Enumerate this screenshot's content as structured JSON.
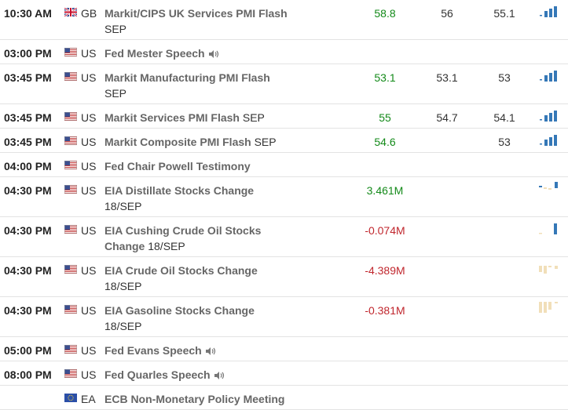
{
  "colors": {
    "positive": "#138a19",
    "negative": "#c0262d",
    "bar_active": "#3578b7",
    "bar_faded": "#f1dfb9"
  },
  "rows": [
    {
      "time": "10:30 AM",
      "flag": "gb-flag-icon",
      "country": "GB",
      "event": "Markit/CIPS UK Services PMI Flash",
      "suffix": "SEP",
      "suffix_wrap": true,
      "actual": "58.8",
      "actual_tone": "positive",
      "forecast": "56",
      "previous": "55.1",
      "bars": "rising",
      "sound": false
    },
    {
      "time": "03:00 PM",
      "flag": "us-flag-icon",
      "country": "US",
      "event": "Fed Mester Speech",
      "suffix": "",
      "suffix_wrap": false,
      "actual": "",
      "actual_tone": "",
      "forecast": "",
      "previous": "",
      "bars": "none",
      "sound": true
    },
    {
      "time": "03:45 PM",
      "flag": "us-flag-icon",
      "country": "US",
      "event": "Markit Manufacturing PMI Flash",
      "suffix": "SEP",
      "suffix_wrap": true,
      "actual": "53.1",
      "actual_tone": "positive",
      "forecast": "53.1",
      "previous": "53",
      "bars": "rising",
      "sound": false
    },
    {
      "time": "03:45 PM",
      "flag": "us-flag-icon",
      "country": "US",
      "event": "Markit Services PMI Flash",
      "suffix": "SEP",
      "suffix_wrap": false,
      "actual": "55",
      "actual_tone": "positive",
      "forecast": "54.7",
      "previous": "54.1",
      "bars": "rising",
      "sound": false
    },
    {
      "time": "03:45 PM",
      "flag": "us-flag-icon",
      "country": "US",
      "event": "Markit Composite PMI Flash",
      "suffix": "SEP",
      "suffix_wrap": false,
      "actual": "54.6",
      "actual_tone": "positive",
      "forecast": "",
      "previous": "53",
      "bars": "rising",
      "sound": false
    },
    {
      "time": "04:00 PM",
      "flag": "us-flag-icon",
      "country": "US",
      "event": "Fed Chair Powell Testimony",
      "suffix": "",
      "suffix_wrap": false,
      "actual": "",
      "actual_tone": "",
      "forecast": "",
      "previous": "",
      "bars": "none",
      "sound": false
    },
    {
      "time": "04:30 PM",
      "flag": "us-flag-icon",
      "country": "US",
      "event": "EIA Distillate Stocks Change",
      "suffix": "18/SEP",
      "suffix_wrap": true,
      "actual": "3.461M",
      "actual_tone": "positive",
      "forecast": "",
      "previous": "",
      "bars": "mixed_blue",
      "sound": false
    },
    {
      "time": "04:30 PM",
      "flag": "us-flag-icon",
      "country": "US",
      "event": "EIA Cushing Crude Oil Stocks Change",
      "suffix": "18/SEP",
      "suffix_wrap": false,
      "actual": "-0.074M",
      "actual_tone": "negative",
      "forecast": "",
      "previous": "",
      "bars": "single_blue",
      "sound": false
    },
    {
      "time": "04:30 PM",
      "flag": "us-flag-icon",
      "country": "US",
      "event": "EIA Crude Oil Stocks Change",
      "suffix": "18/SEP",
      "suffix_wrap": true,
      "actual": "-4.389M",
      "actual_tone": "negative",
      "forecast": "",
      "previous": "",
      "bars": "faded_mixed",
      "sound": false
    },
    {
      "time": "04:30 PM",
      "flag": "us-flag-icon",
      "country": "US",
      "event": "EIA Gasoline Stocks Change",
      "suffix": "18/SEP",
      "suffix_wrap": true,
      "actual": "-0.381M",
      "actual_tone": "negative",
      "forecast": "",
      "previous": "",
      "bars": "faded_down",
      "sound": false
    },
    {
      "time": "05:00 PM",
      "flag": "us-flag-icon",
      "country": "US",
      "event": "Fed Evans Speech",
      "suffix": "",
      "suffix_wrap": false,
      "actual": "",
      "actual_tone": "",
      "forecast": "",
      "previous": "",
      "bars": "none",
      "sound": true
    },
    {
      "time": "08:00 PM",
      "flag": "us-flag-icon",
      "country": "US",
      "event": "Fed Quarles Speech",
      "suffix": "",
      "suffix_wrap": false,
      "actual": "",
      "actual_tone": "",
      "forecast": "",
      "previous": "",
      "bars": "none",
      "sound": true
    },
    {
      "time": "",
      "flag": "eu-flag-icon",
      "country": "EA",
      "event": "ECB Non-Monetary Policy Meeting",
      "suffix": "",
      "suffix_wrap": false,
      "actual": "",
      "actual_tone": "",
      "forecast": "",
      "previous": "",
      "bars": "none",
      "sound": false
    }
  ]
}
